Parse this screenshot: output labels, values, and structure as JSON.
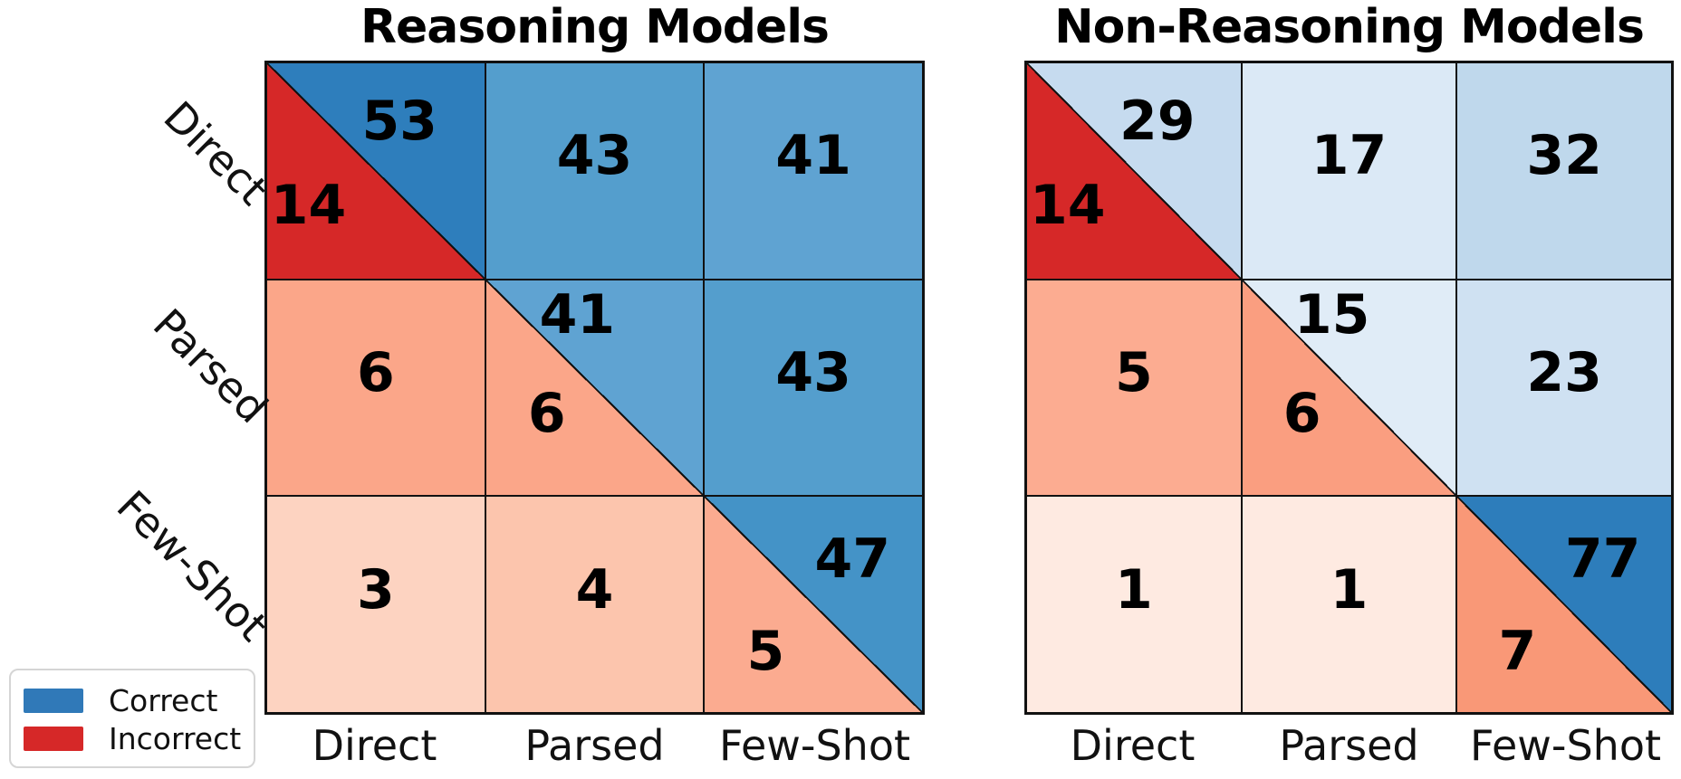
{
  "figure": {
    "background": "#ffffff",
    "grid_line_color": "#111111"
  },
  "legend": {
    "items": [
      {
        "label": "Correct",
        "color": "#3079b8"
      },
      {
        "label": "Incorrect",
        "color": "#d62828"
      }
    ]
  },
  "chart_data": [
    {
      "type": "heatmap",
      "title": "Reasoning Models",
      "row_labels": [
        "Direct",
        "Parsed",
        "Few-Shot"
      ],
      "col_labels": [
        "Direct",
        "Parsed",
        "Few-Shot"
      ],
      "note": "diagonal cells are split: upper-right triangle = Correct count, lower-left triangle = Incorrect count",
      "cells": [
        [
          {
            "split": true,
            "correct": 53,
            "incorrect": 14,
            "correct_color": "#2e7ebc",
            "incorrect_color": "#d62828"
          },
          {
            "split": false,
            "value": 43,
            "color": "#549ecd"
          },
          {
            "split": false,
            "value": 41,
            "color": "#5fa3d2"
          }
        ],
        [
          {
            "split": false,
            "value": 6,
            "color": "#fba689"
          },
          {
            "split": true,
            "correct": 41,
            "incorrect": 6,
            "correct_color": "#5fa3d2",
            "incorrect_color": "#fba689"
          },
          {
            "split": false,
            "value": 43,
            "color": "#549ecd"
          }
        ],
        [
          {
            "split": false,
            "value": 3,
            "color": "#fdd3c1"
          },
          {
            "split": false,
            "value": 4,
            "color": "#fcc5ad"
          },
          {
            "split": true,
            "correct": 47,
            "incorrect": 5,
            "correct_color": "#4493c7",
            "incorrect_color": "#fbab90"
          }
        ]
      ]
    },
    {
      "type": "heatmap",
      "title": "Non-Reasoning Models",
      "row_labels": [
        "Direct",
        "Parsed",
        "Few-Shot"
      ],
      "col_labels": [
        "Direct",
        "Parsed",
        "Few-Shot"
      ],
      "note": "diagonal cells are split: upper-right triangle = Correct count, lower-left triangle = Incorrect count",
      "cells": [
        [
          {
            "split": true,
            "correct": 29,
            "incorrect": 14,
            "correct_color": "#c6dbef",
            "incorrect_color": "#d62828"
          },
          {
            "split": false,
            "value": 17,
            "color": "#dbe9f6"
          },
          {
            "split": false,
            "value": 32,
            "color": "#bfd8ec"
          }
        ],
        [
          {
            "split": false,
            "value": 5,
            "color": "#fcac91"
          },
          {
            "split": true,
            "correct": 15,
            "incorrect": 6,
            "correct_color": "#e0ecf7",
            "incorrect_color": "#fa9e80"
          },
          {
            "split": false,
            "value": 23,
            "color": "#cfe1f2"
          }
        ],
        [
          {
            "split": false,
            "value": 1,
            "color": "#feeae1"
          },
          {
            "split": false,
            "value": 1,
            "color": "#feeae1"
          },
          {
            "split": true,
            "correct": 77,
            "incorrect": 7,
            "correct_color": "#2d7dbb",
            "incorrect_color": "#f99877"
          }
        ]
      ]
    }
  ]
}
